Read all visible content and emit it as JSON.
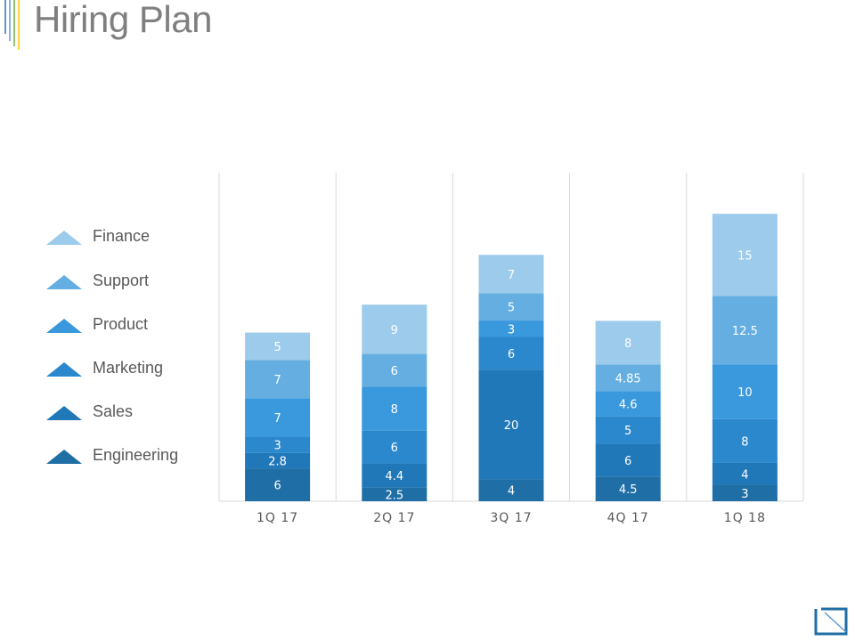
{
  "slide": {
    "title": "Hiring Plan"
  },
  "colors": {
    "Engineering": "#1f6ea6",
    "Sales": "#2178b9",
    "Marketing": "#2b88cd",
    "Product": "#3a98dc",
    "Support": "#64aee2",
    "Finance": "#9ccbeb",
    "grid": "#d9d9d9",
    "label_light": "#ffffff",
    "axis_text": "#595959"
  },
  "chart_data": {
    "type": "bar",
    "stacked": true,
    "title": "",
    "xlabel": "",
    "ylabel": "",
    "categories": [
      "1Q 17",
      "2Q 17",
      "3Q 17",
      "4Q 17",
      "1Q 18"
    ],
    "series": [
      {
        "name": "Engineering",
        "values": [
          6,
          2.5,
          4,
          4.5,
          3
        ]
      },
      {
        "name": "Sales",
        "values": [
          2.8,
          4.4,
          20,
          6,
          4
        ]
      },
      {
        "name": "Marketing",
        "values": [
          3,
          6,
          6,
          5,
          8
        ]
      },
      {
        "name": "Product",
        "values": [
          7,
          8,
          3,
          4.6,
          10
        ]
      },
      {
        "name": "Support",
        "values": [
          7,
          6,
          5,
          4.85,
          12.5
        ]
      },
      {
        "name": "Finance",
        "values": [
          5,
          9,
          7,
          8,
          15
        ]
      }
    ],
    "ylim": [
      0,
      60
    ],
    "grid": "vertical",
    "legend": "left",
    "data_labels": true
  }
}
